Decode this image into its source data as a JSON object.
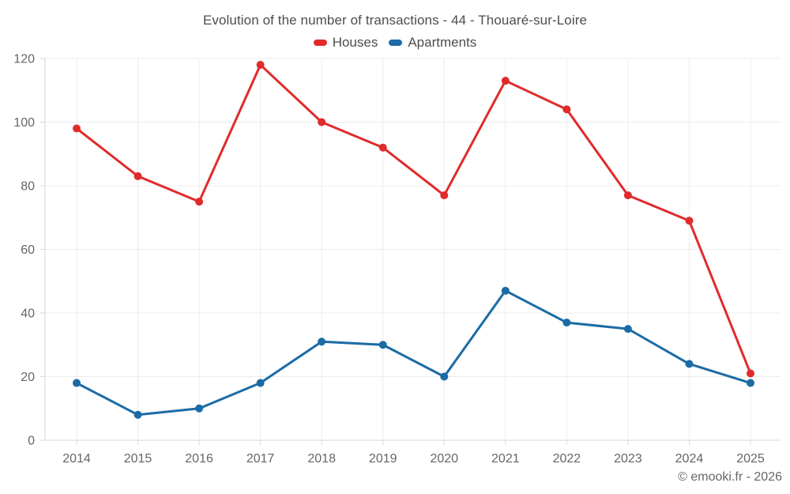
{
  "header": {
    "title": "Evolution of the number of transactions - 44 - Thouaré-sur-Loire"
  },
  "footer": {
    "watermark": "© emooki.fr - 2026"
  },
  "colors": {
    "background": "#ffffff",
    "grid": "#ececec",
    "axis": "#d6d6d6",
    "tick_text": "#666666",
    "title_text": "#4d4d4d",
    "houses": "#e02b2b",
    "apartments": "#1b6ba5"
  },
  "chart_data": {
    "type": "line",
    "title": "Evolution of the number of transactions - 44 - Thouaré-sur-Loire",
    "categories": [
      "2014",
      "2015",
      "2016",
      "2017",
      "2018",
      "2019",
      "2020",
      "2021",
      "2022",
      "2023",
      "2024",
      "2025"
    ],
    "series": [
      {
        "name": "Houses",
        "color": "#e02b2b",
        "values": [
          98,
          83,
          75,
          118,
          100,
          92,
          77,
          113,
          104,
          77,
          69,
          21
        ]
      },
      {
        "name": "Apartments",
        "color": "#1b6ba5",
        "values": [
          18,
          8,
          10,
          18,
          31,
          30,
          20,
          47,
          37,
          35,
          24,
          18
        ]
      }
    ],
    "xlabel": "",
    "ylabel": "",
    "ylim": [
      0,
      120
    ],
    "yticks": [
      0,
      20,
      40,
      60,
      80,
      100,
      120
    ],
    "grid": true,
    "legend_position": "top",
    "legend_labels": [
      "Houses",
      "Apartments"
    ]
  }
}
